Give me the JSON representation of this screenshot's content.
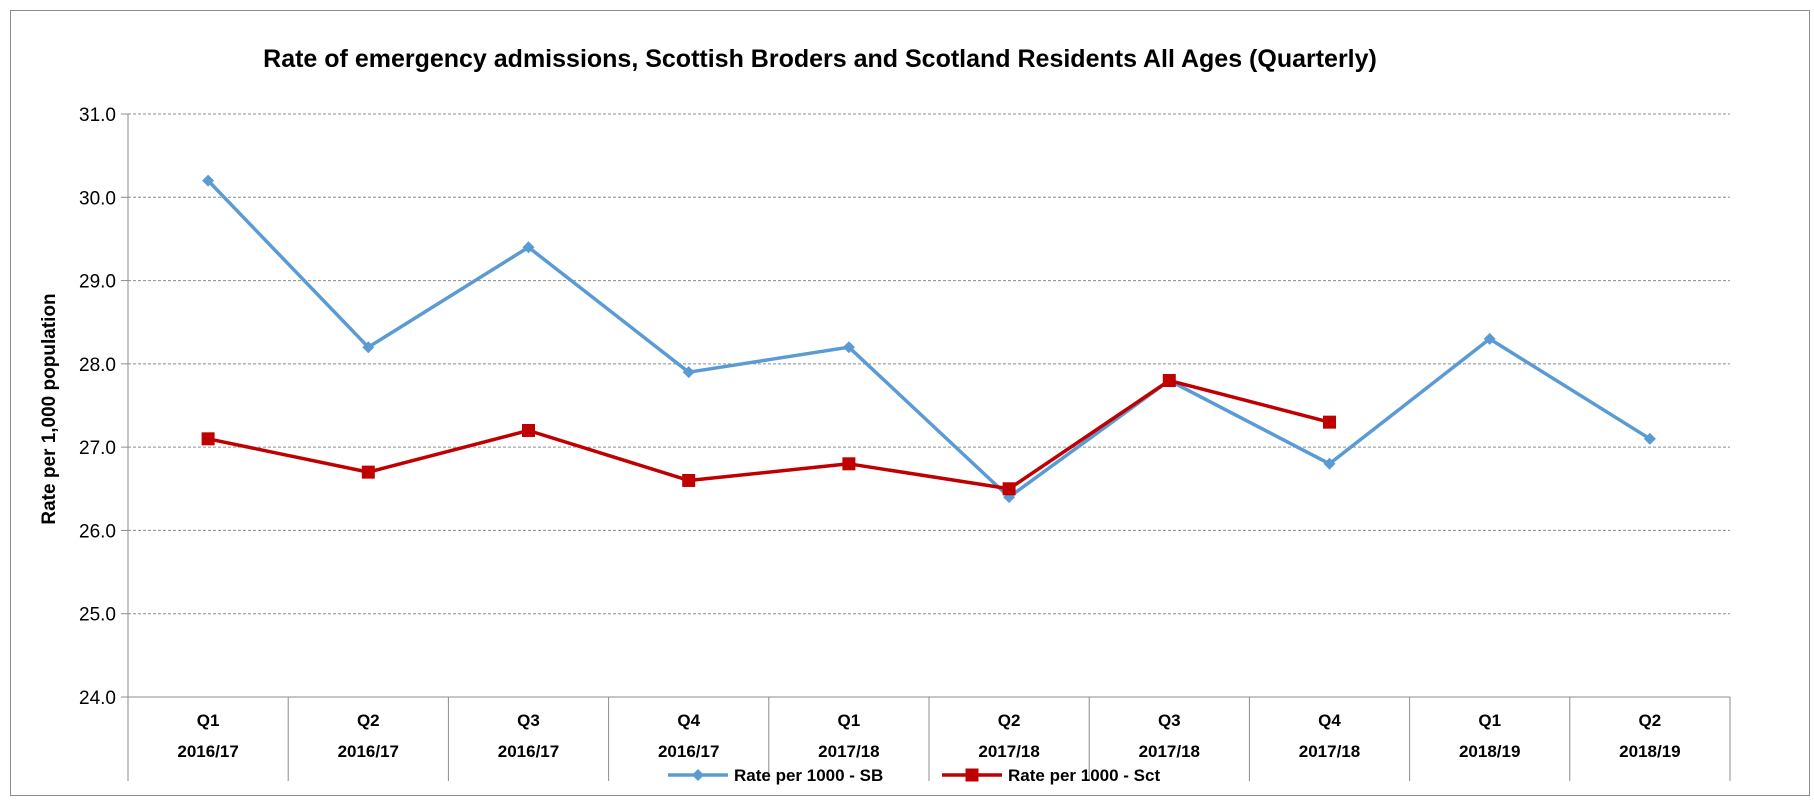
{
  "chart_data": {
    "type": "line",
    "title": "Rate of emergency admissions, Scottish Broders and Scotland Residents All Ages (Quarterly)",
    "ylabel": "Rate per 1,000 population",
    "xlabel": "",
    "ylim": [
      24.0,
      31.0
    ],
    "yticks": [
      "24.0",
      "25.0",
      "26.0",
      "27.0",
      "28.0",
      "29.0",
      "30.0",
      "31.0"
    ],
    "grid": true,
    "legend_position": "bottom",
    "categories": [
      {
        "quarter": "Q1",
        "year": "2016/17"
      },
      {
        "quarter": "Q2",
        "year": "2016/17"
      },
      {
        "quarter": "Q3",
        "year": "2016/17"
      },
      {
        "quarter": "Q4",
        "year": "2016/17"
      },
      {
        "quarter": "Q1",
        "year": "2017/18"
      },
      {
        "quarter": "Q2",
        "year": "2017/18"
      },
      {
        "quarter": "Q3",
        "year": "2017/18"
      },
      {
        "quarter": "Q4",
        "year": "2017/18"
      },
      {
        "quarter": "Q1",
        "year": "2018/19"
      },
      {
        "quarter": "Q2",
        "year": "2018/19"
      }
    ],
    "series": [
      {
        "name": "Rate per 1000 - SB",
        "color": "#5b9bd5",
        "marker": "diamond",
        "values": [
          30.2,
          28.2,
          29.4,
          27.9,
          28.2,
          26.4,
          27.8,
          26.8,
          28.3,
          27.1
        ]
      },
      {
        "name": "Rate per 1000 - Sct",
        "color": "#c00000",
        "marker": "square",
        "values": [
          27.1,
          26.7,
          27.2,
          26.6,
          26.8,
          26.5,
          27.8,
          27.3,
          null,
          null
        ]
      }
    ]
  }
}
